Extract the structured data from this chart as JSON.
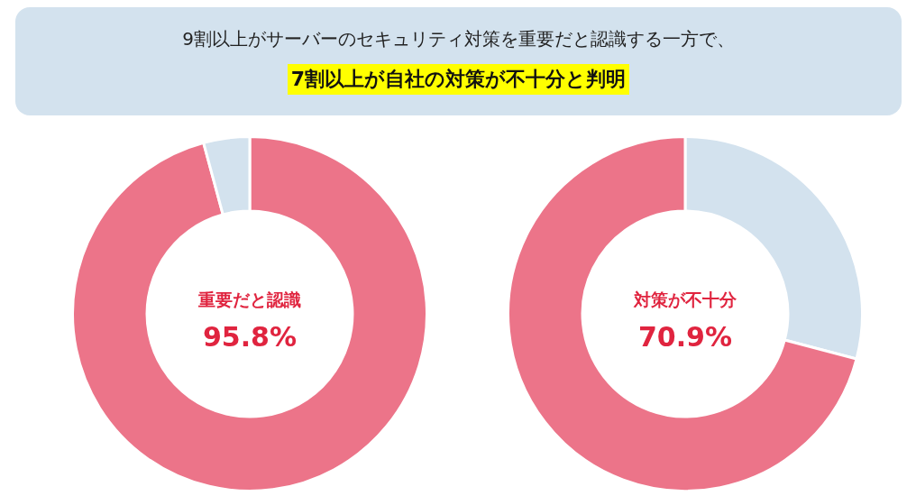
{
  "chart_data": [
    {
      "type": "other",
      "title": "9割以上がサーバーのセキュリティ対策を重要だと認識する一方で、",
      "subtitle": "7割以上が自社の対策が不十分と判明"
    },
    {
      "type": "donut",
      "categories": [
        "重要だと認識",
        null
      ],
      "values": [
        95.8,
        4.2
      ],
      "colors": [
        "#ec7489",
        "#d3e2ee"
      ],
      "value_labels": [
        "95.8%",
        null
      ]
    },
    {
      "type": "donut",
      "categories": [
        null,
        "対策が不十分"
      ],
      "values": [
        29.1,
        70.9
      ],
      "colors": [
        "#d3e2ee",
        "#ec7489"
      ],
      "value_labels": [
        null,
        "70.9%"
      ]
    }
  ]
}
